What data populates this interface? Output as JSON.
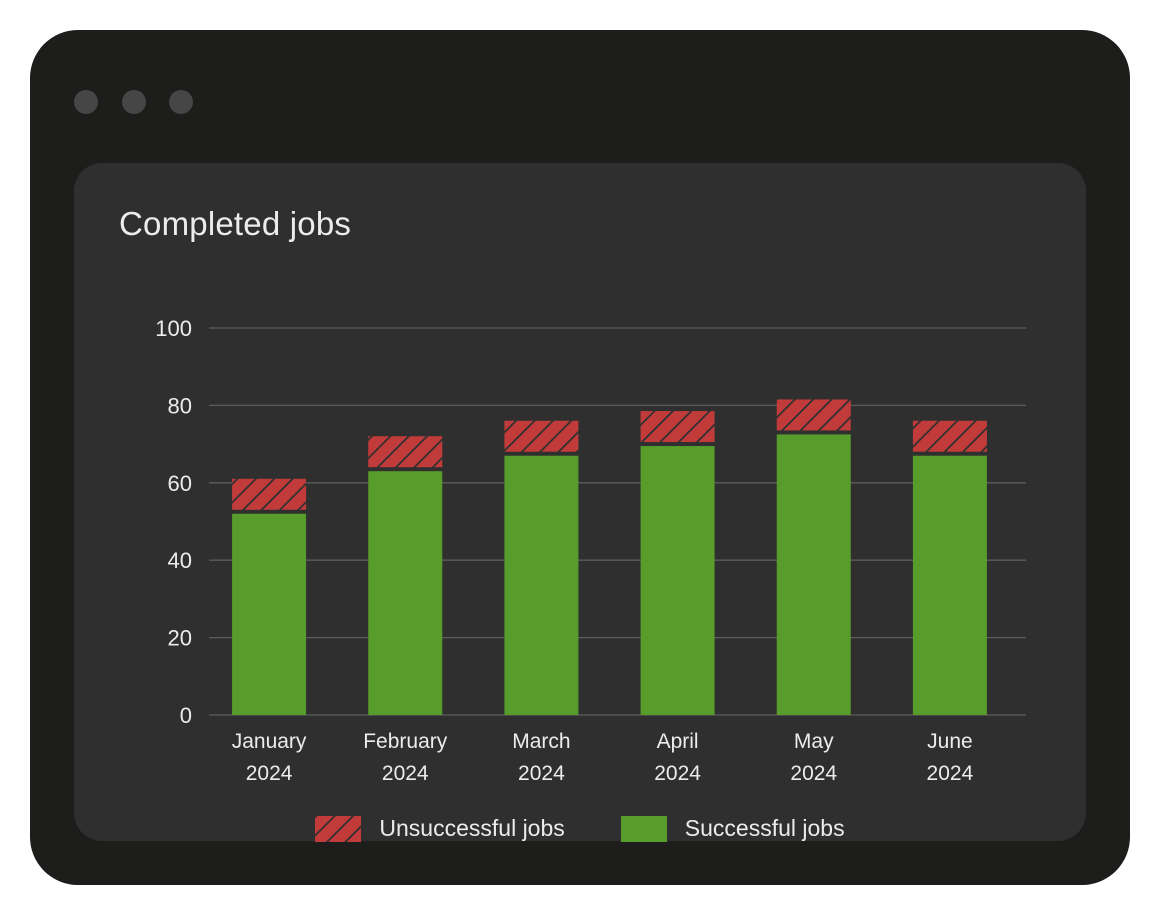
{
  "window": {
    "controls": [
      "dot",
      "dot",
      "dot"
    ]
  },
  "card": {
    "title": "Completed jobs"
  },
  "colors": {
    "successful": "#589c2b",
    "unsuccessful": "#c23b3b",
    "hatch_line": "#2f2f2f",
    "grid": "#5c5c5c",
    "text": "#ececec"
  },
  "legend": {
    "unsuccessful_label": "Unsuccessful jobs",
    "successful_label": "Successful jobs"
  },
  "chart_data": {
    "type": "bar",
    "stacked": true,
    "title": "Completed jobs",
    "categories": [
      [
        "January",
        "2024"
      ],
      [
        "February",
        "2024"
      ],
      [
        "March",
        "2024"
      ],
      [
        "April",
        "2024"
      ],
      [
        "May",
        "2024"
      ],
      [
        "June",
        "2024"
      ]
    ],
    "series": [
      {
        "name": "Successful jobs",
        "values": [
          52,
          63,
          67,
          69.5,
          72.5,
          67
        ]
      },
      {
        "name": "Unsuccessful jobs",
        "values": [
          8,
          8,
          8,
          8,
          8,
          8
        ]
      }
    ],
    "ylim": [
      0,
      100
    ],
    "yticks": [
      0,
      20,
      40,
      60,
      80,
      100
    ],
    "grid": true,
    "legend_position": "bottom"
  }
}
